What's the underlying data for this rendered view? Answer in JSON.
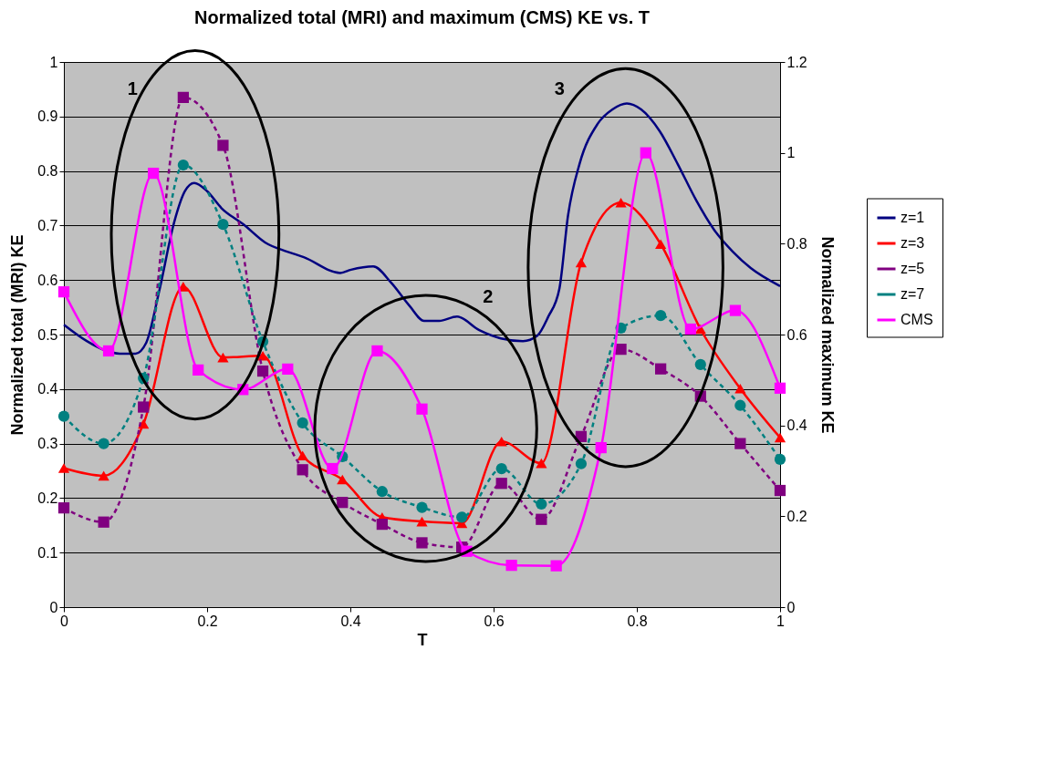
{
  "chart_data": {
    "type": "line",
    "title": "Normalized total (MRI) and maximum (CMS) KE vs. T",
    "xlabel": "T",
    "ylabel": "Normalized total (MRI) KE",
    "y2label": "Normalized maximum KE",
    "x": [
      0,
      0.0556,
      0.1111,
      0.1667,
      0.2222,
      0.2778,
      0.3333,
      0.3889,
      0.4444,
      0.5,
      0.5556,
      0.6111,
      0.6667,
      0.7222,
      0.7778,
      0.8333,
      0.8889,
      0.9444,
      1
    ],
    "series": [
      {
        "name": "z=1",
        "color": "#000080",
        "marker": "none",
        "line_style": "solid",
        "x": [
          0,
          0.032,
          0.0556,
          0.078,
          0.1,
          0.115,
          0.133,
          0.154,
          0.169,
          0.182,
          0.2,
          0.22,
          0.251,
          0.281,
          0.312,
          0.335,
          0.386,
          0.401,
          0.432,
          0.457,
          0.483,
          0.503,
          0.524,
          0.549,
          0.58,
          0.61,
          0.641,
          0.661,
          0.676,
          0.692,
          0.704,
          0.72,
          0.745,
          0.766,
          0.786,
          0.806,
          0.832,
          0.857,
          0.883,
          0.908,
          0.934,
          0.959,
          1
        ],
        "values": [
          0.518,
          0.488,
          0.472,
          0.465,
          0.465,
          0.485,
          0.579,
          0.706,
          0.763,
          0.778,
          0.763,
          0.732,
          0.702,
          0.669,
          0.652,
          0.642,
          0.613,
          0.619,
          0.625,
          0.595,
          0.552,
          0.525,
          0.525,
          0.533,
          0.508,
          0.493,
          0.488,
          0.498,
          0.532,
          0.585,
          0.719,
          0.813,
          0.886,
          0.913,
          0.924,
          0.913,
          0.873,
          0.813,
          0.746,
          0.692,
          0.652,
          0.622,
          0.589
        ]
      },
      {
        "name": "z=3",
        "color": "#ff0000",
        "marker": "triangle",
        "line_style": "solid",
        "values": [
          0.255,
          0.241,
          0.336,
          0.588,
          0.458,
          0.461,
          0.278,
          0.234,
          0.165,
          0.157,
          0.154,
          0.304,
          0.264,
          0.632,
          0.742,
          0.666,
          0.51,
          0.401,
          0.311
        ]
      },
      {
        "name": "z=5",
        "color": "#800080",
        "marker": "square",
        "line_style": "dashed",
        "values": [
          0.182,
          0.156,
          0.367,
          0.935,
          0.847,
          0.433,
          0.252,
          0.192,
          0.152,
          0.118,
          0.11,
          0.227,
          0.161,
          0.313,
          0.473,
          0.437,
          0.387,
          0.3,
          0.214
        ]
      },
      {
        "name": "z=7",
        "color": "#008080",
        "marker": "circle",
        "line_style": "dashed",
        "values": [
          0.35,
          0.3,
          0.42,
          0.811,
          0.702,
          0.487,
          0.338,
          0.276,
          0.212,
          0.183,
          0.165,
          0.254,
          0.189,
          0.263,
          0.512,
          0.535,
          0.445,
          0.37,
          0.271
        ]
      },
      {
        "name": "CMS",
        "color": "#ff00ff",
        "marker": "square",
        "line_style": "solid",
        "axis": "y2",
        "x": [
          0,
          0.0625,
          0.125,
          0.1875,
          0.25,
          0.3125,
          0.375,
          0.4375,
          0.5,
          0.5625,
          0.625,
          0.6875,
          0.75,
          0.8125,
          0.875,
          0.9375,
          1
        ],
        "values": [
          0.694,
          0.564,
          0.955,
          0.522,
          0.479,
          0.524,
          0.305,
          0.564,
          0.436,
          0.123,
          0.092,
          0.091,
          0.351,
          1.0,
          0.612,
          0.653,
          0.482
        ]
      }
    ],
    "xlim": [
      0,
      1
    ],
    "xticks": [
      0,
      0.2,
      0.4,
      0.6,
      0.8,
      1
    ],
    "ylim": [
      0,
      1
    ],
    "yticks": [
      0,
      0.1,
      0.2,
      0.3,
      0.4,
      0.5,
      0.6,
      0.7,
      0.8,
      0.9,
      1
    ],
    "y2lim": [
      0,
      1.2
    ],
    "y2ticks": [
      0,
      0.2,
      0.4,
      0.6,
      0.8,
      1,
      1.2
    ],
    "annotations": [
      "1",
      "2",
      "3"
    ],
    "grid": "y",
    "legend": "right"
  }
}
